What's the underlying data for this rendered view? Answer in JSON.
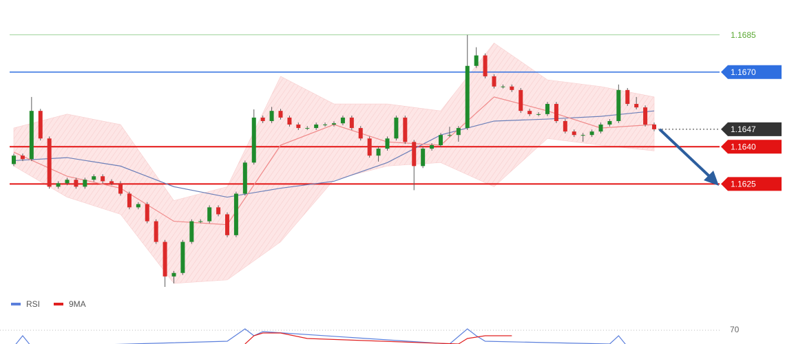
{
  "chart_data": [
    {
      "type": "candlestick",
      "ylim": [
        1.158,
        1.1699
      ],
      "up_color": "#1f8b2c",
      "down_color": "#dc2a2a",
      "wick_color": "#5a5a5a",
      "open": [
        1.1633,
        1.16364,
        1.1635,
        1.16544,
        1.16433,
        1.16239,
        1.16253,
        1.16267,
        1.16239,
        1.16267,
        1.16281,
        1.16261,
        1.16253,
        1.16211,
        1.16156,
        1.16169,
        1.161,
        1.16017,
        1.15878,
        1.15892,
        1.16017,
        1.161,
        1.161,
        1.16156,
        1.16128,
        1.16044,
        1.16211,
        1.16336,
        1.16517,
        1.16503,
        1.16544,
        1.16517,
        1.16489,
        1.16475,
        1.16475,
        1.16489,
        1.16489,
        1.16494,
        1.16517,
        1.16475,
        1.16433,
        1.16364,
        1.16392,
        1.16433,
        1.16517,
        1.16419,
        1.16322,
        1.16392,
        1.16406,
        1.16447,
        1.16447,
        1.16475,
        1.16725,
        1.16767,
        1.16683,
        1.16642,
        1.16642,
        1.16628,
        1.16544,
        1.16531,
        1.16531,
        1.16572,
        1.16503,
        1.16461,
        1.16447,
        1.16447,
        1.16461,
        1.16489,
        1.16503,
        1.16628,
        1.16572,
        1.16558,
        1.16489
      ],
      "high": [
        1.16372,
        1.16372,
        1.166,
        1.16552,
        1.16441,
        1.16261,
        1.16275,
        1.16275,
        1.16275,
        1.16289,
        1.16289,
        1.16269,
        1.16261,
        1.16219,
        1.16177,
        1.16177,
        1.16108,
        1.16025,
        1.159,
        1.16025,
        1.16108,
        1.16108,
        1.16164,
        1.16164,
        1.16136,
        1.16219,
        1.16344,
        1.1655,
        1.16525,
        1.1656,
        1.16552,
        1.16525,
        1.16497,
        1.16483,
        1.16497,
        1.16497,
        1.16502,
        1.16525,
        1.16525,
        1.16483,
        1.16441,
        1.164,
        1.16441,
        1.16525,
        1.16525,
        1.16427,
        1.164,
        1.16414,
        1.16455,
        1.1648,
        1.16483,
        1.1685,
        1.168,
        1.16775,
        1.16691,
        1.1665,
        1.1665,
        1.16636,
        1.16552,
        1.16539,
        1.1658,
        1.1658,
        1.16511,
        1.16469,
        1.16455,
        1.16469,
        1.16497,
        1.16511,
        1.1665,
        1.16636,
        1.166,
        1.16566,
        1.16497
      ],
      "low": [
        1.16322,
        1.16342,
        1.16342,
        1.16425,
        1.16231,
        1.16231,
        1.16245,
        1.16231,
        1.16231,
        1.16259,
        1.16253,
        1.16245,
        1.16203,
        1.16148,
        1.16148,
        1.16092,
        1.16009,
        1.15836,
        1.1585,
        1.15884,
        1.16009,
        1.16092,
        1.16092,
        1.1612,
        1.16036,
        1.16036,
        1.16203,
        1.16328,
        1.16495,
        1.16495,
        1.16509,
        1.16481,
        1.16467,
        1.16467,
        1.16467,
        1.16481,
        1.16481,
        1.16486,
        1.16467,
        1.16425,
        1.16356,
        1.1634,
        1.16384,
        1.16425,
        1.16411,
        1.16225,
        1.16314,
        1.16384,
        1.16398,
        1.16439,
        1.1642,
        1.16467,
        1.16717,
        1.16675,
        1.16634,
        1.16634,
        1.1662,
        1.16536,
        1.16523,
        1.16523,
        1.16523,
        1.16495,
        1.16453,
        1.16439,
        1.1642,
        1.16439,
        1.16453,
        1.16481,
        1.16495,
        1.16564,
        1.1655,
        1.16481,
        1.16462
      ],
      "close": [
        1.16364,
        1.1635,
        1.16544,
        1.16433,
        1.16239,
        1.16253,
        1.16267,
        1.16239,
        1.16267,
        1.16281,
        1.16261,
        1.16253,
        1.16211,
        1.16156,
        1.16169,
        1.161,
        1.16017,
        1.15878,
        1.15892,
        1.16017,
        1.161,
        1.161,
        1.16156,
        1.16128,
        1.16044,
        1.16211,
        1.16336,
        1.16517,
        1.16503,
        1.16544,
        1.16517,
        1.16489,
        1.16475,
        1.16475,
        1.16489,
        1.16489,
        1.16494,
        1.16517,
        1.16475,
        1.16433,
        1.16364,
        1.16392,
        1.16433,
        1.16517,
        1.16419,
        1.16322,
        1.16392,
        1.16406,
        1.16447,
        1.16447,
        1.16475,
        1.16725,
        1.16767,
        1.16683,
        1.16642,
        1.16642,
        1.16628,
        1.16544,
        1.16531,
        1.16531,
        1.16572,
        1.16503,
        1.16461,
        1.16447,
        1.16447,
        1.16461,
        1.16489,
        1.16503,
        1.16628,
        1.16572,
        1.16558,
        1.16489,
        1.1647
      ],
      "overlays": {
        "x": [
          0,
          6,
          12,
          18,
          24,
          30,
          36,
          42,
          48,
          54,
          60,
          66,
          72
        ],
        "band_upper": [
          1.16475,
          1.16531,
          1.16489,
          1.16183,
          1.16239,
          1.16683,
          1.16572,
          1.16572,
          1.16544,
          1.16817,
          1.16669,
          1.16642,
          1.166
        ],
        "band_lower": [
          1.16322,
          1.16197,
          1.16128,
          1.1585,
          1.15864,
          1.16017,
          1.16267,
          1.16322,
          1.16336,
          1.16239,
          1.16433,
          1.16406,
          1.16383
        ],
        "band_color": "#f7c9c9",
        "ma_slow": [
          1.16344,
          1.16356,
          1.16322,
          1.16239,
          1.16197,
          1.16233,
          1.16261,
          1.16336,
          1.16447,
          1.16503,
          1.16511,
          1.16522,
          1.16544
        ],
        "ma_slow_color": "#6b7fb8",
        "ma_fast": [
          1.16378,
          1.16281,
          1.16233,
          1.161,
          1.16086,
          1.16406,
          1.16489,
          1.16419,
          1.16406,
          1.166,
          1.16544,
          1.16475,
          1.16489
        ],
        "ma_fast_color": "#f08a8a"
      },
      "levels": [
        {
          "price": 1.1685,
          "color": "#9ed39a",
          "text_color": "#5aa832",
          "badge": false,
          "dotted": false,
          "width": 1
        },
        {
          "price": {
            "value": 1.167,
            "label": "1.1670"
          },
          "color": "#2f6fe0",
          "text_color": "#ffffff",
          "badge": true,
          "dotted": false,
          "width": 1.5
        },
        {
          "price": 1.1647,
          "color": "#333333",
          "text_color": "#ffffff",
          "badge": true,
          "dotted": true,
          "width": 1
        },
        {
          "price": {
            "value": 1.164,
            "label": "1.1640"
          },
          "color": "#e31414",
          "text_color": "#ffffff",
          "badge": true,
          "dotted": false,
          "width": 2
        },
        {
          "price": 1.1625,
          "color": "#e31414",
          "text_color": "#ffffff",
          "badge": true,
          "dotted": false,
          "width": 2
        }
      ]
    },
    {
      "type": "line",
      "ylim": [
        60,
        75
      ],
      "yticks": [
        70
      ],
      "series": [
        {
          "name": "RSI",
          "color": "#5b7fdc",
          "x": [
            0,
            1,
            2,
            24,
            26,
            27,
            28,
            49,
            51,
            52,
            53,
            67,
            68,
            69
          ],
          "values": [
            58,
            66,
            58,
            62,
            71,
            66,
            69,
            60,
            71,
            66,
            62,
            60,
            66,
            58
          ]
        },
        {
          "name": "9MA",
          "color": "#e02020",
          "x": [
            26,
            27,
            28,
            30,
            33,
            50,
            51,
            53,
            56
          ],
          "values": [
            60,
            66,
            68,
            68,
            64,
            60,
            64,
            66,
            66
          ]
        }
      ]
    }
  ]
}
